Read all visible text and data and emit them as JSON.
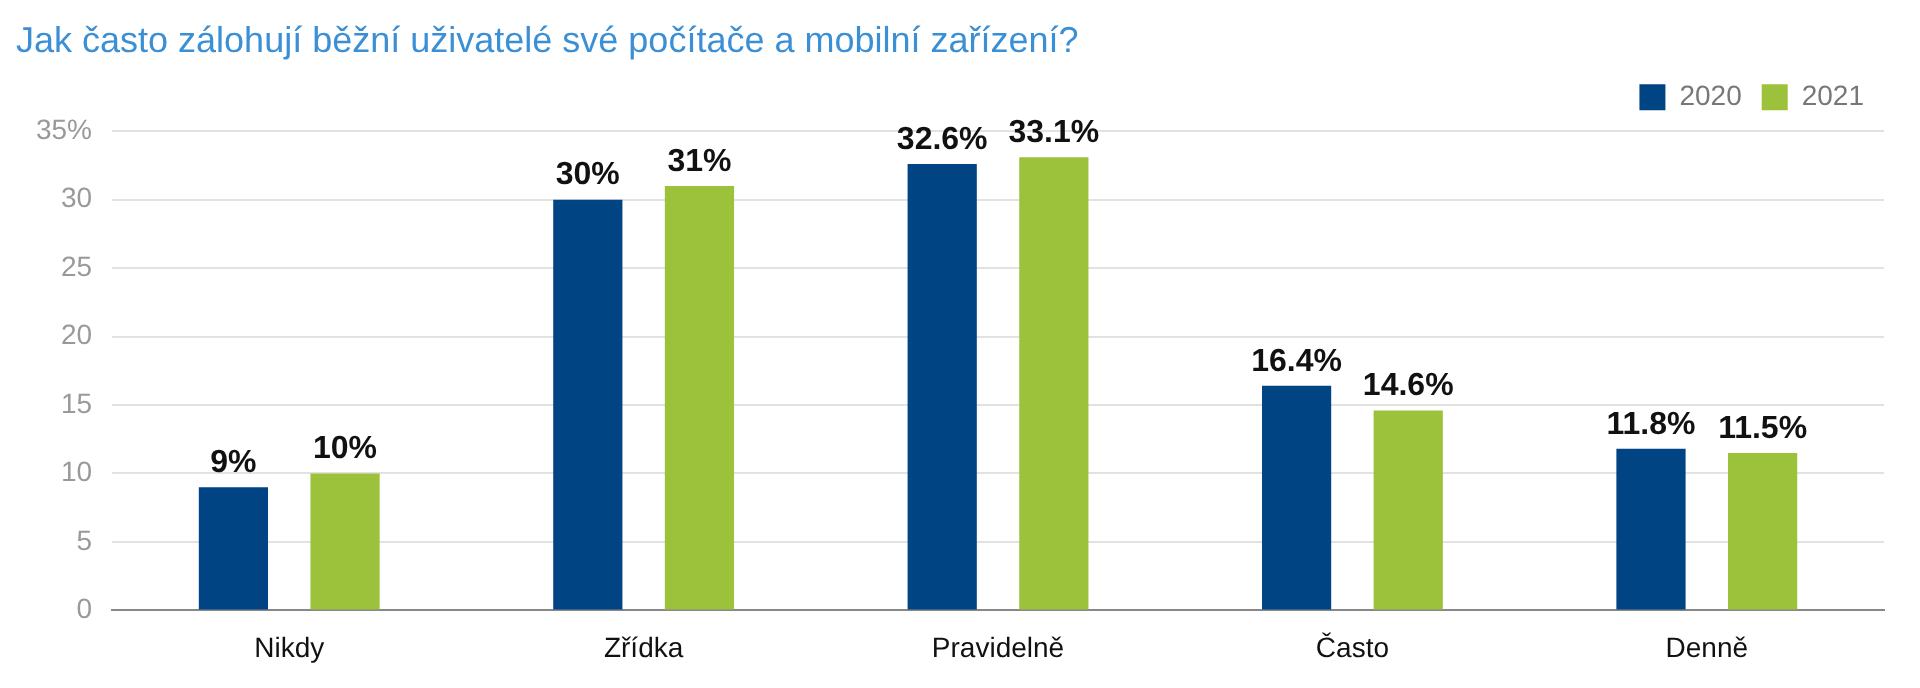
{
  "chart_data": {
    "type": "bar",
    "title": "Jak často zálohují běžní uživatelé své počítače a mobilní zařízení?",
    "categories": [
      "Nikdy",
      "Zřídka",
      "Pravidelně",
      "Často",
      "Denně"
    ],
    "series": [
      {
        "name": "2020",
        "color": "#004484",
        "values": [
          9,
          30,
          32.6,
          16.4,
          11.8
        ],
        "value_labels": [
          "9%",
          "30%",
          "32.6%",
          "16.4%",
          "11.8%"
        ]
      },
      {
        "name": "2021",
        "color": "#9cc23c",
        "values": [
          10,
          31,
          33.1,
          14.6,
          11.5
        ],
        "value_labels": [
          "10%",
          "31%",
          "33.1%",
          "14.6%",
          "11.5%"
        ]
      }
    ],
    "ylim": [
      0,
      35
    ],
    "yticks": [
      0,
      5,
      10,
      15,
      20,
      25,
      30,
      {
        "value": 35,
        "label": "35%"
      }
    ],
    "grid": "y",
    "legend": "top right"
  }
}
